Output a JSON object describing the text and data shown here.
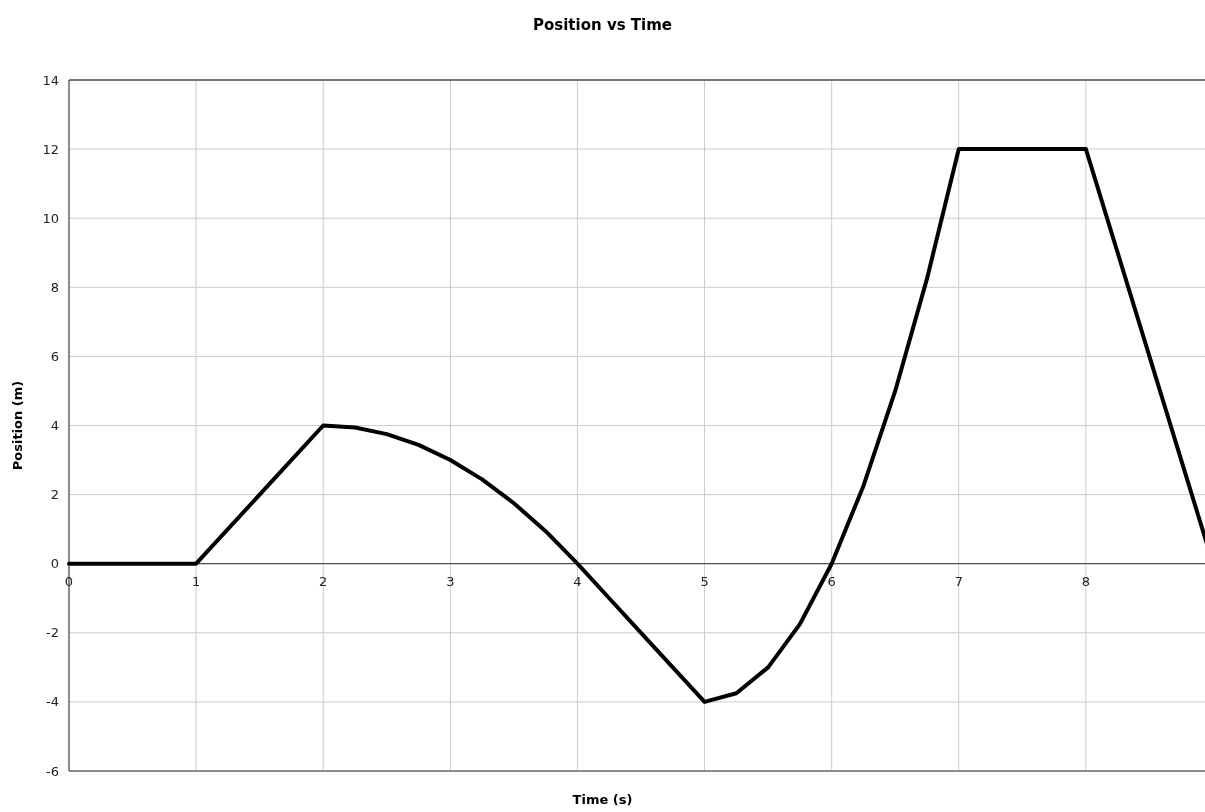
{
  "chart_data": {
    "type": "line",
    "title": "Position vs Time",
    "xlabel": "Time (s)",
    "ylabel": "Position (m)",
    "x": [
      0,
      1,
      2,
      2.25,
      2.5,
      2.75,
      3,
      3.25,
      3.5,
      3.75,
      4,
      4.25,
      4.5,
      4.75,
      5,
      5.25,
      5.5,
      5.75,
      6,
      6.25,
      6.5,
      6.75,
      7,
      8,
      9
    ],
    "series": [
      {
        "color": "#000000",
        "values": [
          0,
          0,
          4,
          3.94,
          3.75,
          3.44,
          3,
          2.44,
          1.75,
          0.94,
          0,
          -1,
          -2,
          -3,
          -4,
          -3.75,
          -3,
          -1.75,
          0,
          2.25,
          5,
          8.25,
          12,
          12,
          0
        ]
      }
    ],
    "xlim": [
      0,
      9
    ],
    "xticks": [
      0,
      1,
      2,
      3,
      4,
      5,
      6,
      7,
      8
    ],
    "ylim": [
      -6,
      14
    ],
    "yticks": [
      -6,
      -4,
      -2,
      0,
      2,
      4,
      6,
      8,
      10,
      12,
      14
    ],
    "grid": true,
    "marker": "none",
    "line_style": "solid"
  }
}
